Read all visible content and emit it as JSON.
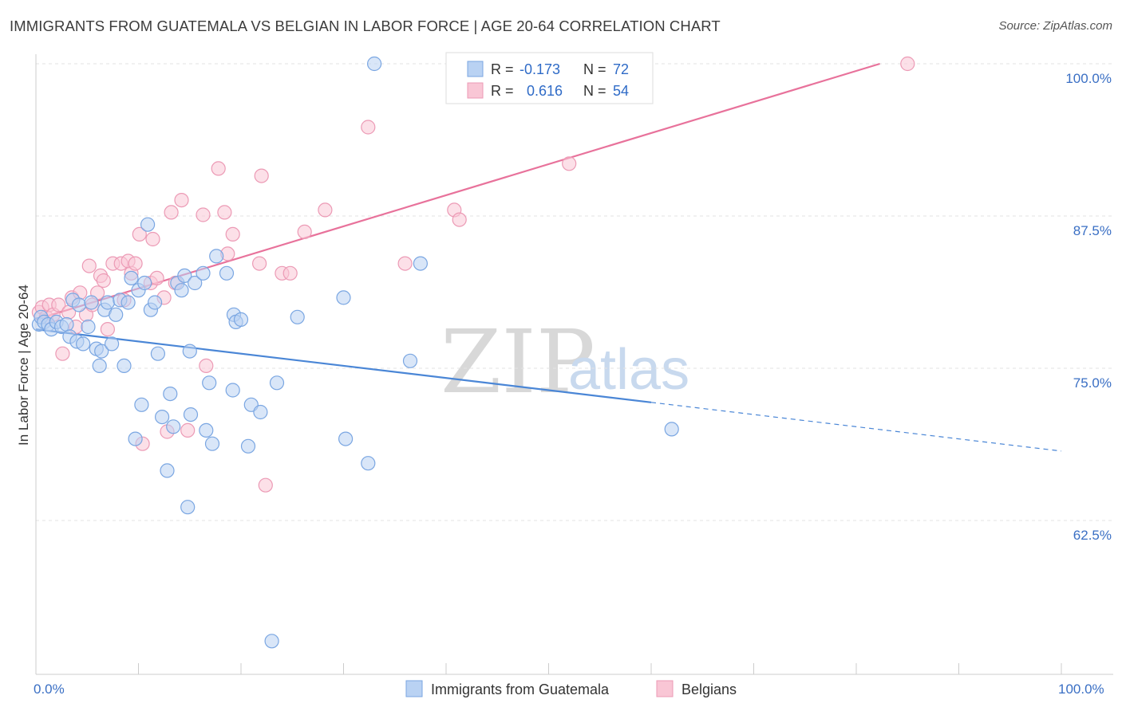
{
  "title": "IMMIGRANTS FROM GUATEMALA VS BELGIAN IN LABOR FORCE | AGE 20-64 CORRELATION CHART",
  "source": "Source: ZipAtlas.com",
  "watermark": {
    "zip": "ZIP",
    "atlas": "atlas"
  },
  "legend": {
    "r_label": "R =",
    "n_label": "N =",
    "rows": [
      {
        "r": "-0.173",
        "n": "72",
        "fill": "#b9d2f3",
        "stroke": "#7aa6e2"
      },
      {
        "r": "0.616",
        "n": "54",
        "fill": "#f9c6d5",
        "stroke": "#ec9ab5"
      }
    ]
  },
  "bottom_legend": [
    "Immigrants from Guatemala",
    "Belgians"
  ],
  "chart_data": {
    "type": "scatter",
    "title": "IMMIGRANTS FROM GUATEMALA VS BELGIAN IN LABOR FORCE | AGE 20-64 CORRELATION CHART",
    "ylabel": "In Labor Force | Age 20-64",
    "xlim": [
      0,
      100
    ],
    "ylim": [
      50,
      100
    ],
    "x_tick_labels": [
      "0.0%",
      "100.0%"
    ],
    "y_ticks": [
      62.5,
      75.0,
      87.5,
      100.0
    ],
    "y_tick_labels": [
      "62.5%",
      "75.0%",
      "87.5%",
      "100.0%"
    ],
    "grid": "horizontal dashed",
    "colors": {
      "guatemala": "#4a86d6",
      "belgians": "#e8729b"
    },
    "series": [
      {
        "name": "Immigrants from Guatemala",
        "color": "#4a86d6",
        "points": [
          [
            0.3,
            78.6
          ],
          [
            0.5,
            79.2
          ],
          [
            0.8,
            78.8
          ],
          [
            1.2,
            78.6
          ],
          [
            1.5,
            78.2
          ],
          [
            2.0,
            78.8
          ],
          [
            2.5,
            78.4
          ],
          [
            3.0,
            78.6
          ],
          [
            3.3,
            77.6
          ],
          [
            3.6,
            80.6
          ],
          [
            4.0,
            77.2
          ],
          [
            4.2,
            80.2
          ],
          [
            4.6,
            77.0
          ],
          [
            5.1,
            78.4
          ],
          [
            5.4,
            80.4
          ],
          [
            5.9,
            76.6
          ],
          [
            6.2,
            75.2
          ],
          [
            6.4,
            76.4
          ],
          [
            6.7,
            79.8
          ],
          [
            7.0,
            80.4
          ],
          [
            7.4,
            77.0
          ],
          [
            7.8,
            79.4
          ],
          [
            8.2,
            80.6
          ],
          [
            8.6,
            75.2
          ],
          [
            9.0,
            80.4
          ],
          [
            9.3,
            82.4
          ],
          [
            9.7,
            69.2
          ],
          [
            10.0,
            81.4
          ],
          [
            10.3,
            72.0
          ],
          [
            10.6,
            82.0
          ],
          [
            10.9,
            86.8
          ],
          [
            11.2,
            79.8
          ],
          [
            11.6,
            80.4
          ],
          [
            11.9,
            76.2
          ],
          [
            12.3,
            71.0
          ],
          [
            12.8,
            66.6
          ],
          [
            13.1,
            72.9
          ],
          [
            13.4,
            70.2
          ],
          [
            13.8,
            82.0
          ],
          [
            14.2,
            81.4
          ],
          [
            14.5,
            82.6
          ],
          [
            14.8,
            63.6
          ],
          [
            15.0,
            76.4
          ],
          [
            15.1,
            71.2
          ],
          [
            15.5,
            82.0
          ],
          [
            16.3,
            82.8
          ],
          [
            16.6,
            69.9
          ],
          [
            16.9,
            73.8
          ],
          [
            17.2,
            68.8
          ],
          [
            17.6,
            84.2
          ],
          [
            18.6,
            82.8
          ],
          [
            19.2,
            73.2
          ],
          [
            19.3,
            79.4
          ],
          [
            19.5,
            78.8
          ],
          [
            20.0,
            79.0
          ],
          [
            20.7,
            68.6
          ],
          [
            21.0,
            72.0
          ],
          [
            21.9,
            71.4
          ],
          [
            23.0,
            52.6
          ],
          [
            23.5,
            73.8
          ],
          [
            25.5,
            79.2
          ],
          [
            30.0,
            80.8
          ],
          [
            30.2,
            69.2
          ],
          [
            32.4,
            67.2
          ],
          [
            33.0,
            100.0
          ],
          [
            36.5,
            75.6
          ],
          [
            37.5,
            83.6
          ],
          [
            62.0,
            70.0
          ]
        ]
      },
      {
        "name": "Belgians",
        "color": "#e8729b",
        "points": [
          [
            0.3,
            79.6
          ],
          [
            0.6,
            80.0
          ],
          [
            1.0,
            79.2
          ],
          [
            1.3,
            80.2
          ],
          [
            1.7,
            79.4
          ],
          [
            2.2,
            80.2
          ],
          [
            2.6,
            76.2
          ],
          [
            3.2,
            79.6
          ],
          [
            3.5,
            80.8
          ],
          [
            3.9,
            78.4
          ],
          [
            4.3,
            81.2
          ],
          [
            4.9,
            79.4
          ],
          [
            5.2,
            83.4
          ],
          [
            5.5,
            80.2
          ],
          [
            6.0,
            81.2
          ],
          [
            6.3,
            82.6
          ],
          [
            6.6,
            82.2
          ],
          [
            7.0,
            78.2
          ],
          [
            7.5,
            83.6
          ],
          [
            8.3,
            83.6
          ],
          [
            8.6,
            80.6
          ],
          [
            9.0,
            83.8
          ],
          [
            9.3,
            82.8
          ],
          [
            9.7,
            83.6
          ],
          [
            10.1,
            86.0
          ],
          [
            10.4,
            68.8
          ],
          [
            11.2,
            82.0
          ],
          [
            11.4,
            85.6
          ],
          [
            11.8,
            82.4
          ],
          [
            12.5,
            80.8
          ],
          [
            12.8,
            69.8
          ],
          [
            13.2,
            87.8
          ],
          [
            13.6,
            82.0
          ],
          [
            14.2,
            88.8
          ],
          [
            14.8,
            69.9
          ],
          [
            16.3,
            87.6
          ],
          [
            16.6,
            75.2
          ],
          [
            17.8,
            91.4
          ],
          [
            18.4,
            87.8
          ],
          [
            18.7,
            84.4
          ],
          [
            19.2,
            86.0
          ],
          [
            21.8,
            83.6
          ],
          [
            22.0,
            90.8
          ],
          [
            22.4,
            65.4
          ],
          [
            24.0,
            82.8
          ],
          [
            24.8,
            82.8
          ],
          [
            26.2,
            86.2
          ],
          [
            28.2,
            88.0
          ],
          [
            32.4,
            94.8
          ],
          [
            36.0,
            83.6
          ],
          [
            40.8,
            88.0
          ],
          [
            41.3,
            87.2
          ],
          [
            52.0,
            91.8
          ],
          [
            85.0,
            100.0
          ]
        ]
      }
    ],
    "trend_lines": [
      {
        "series": "Immigrants from Guatemala",
        "solid": [
          [
            0,
            78.2
          ],
          [
            60,
            72.2
          ]
        ],
        "dashed": [
          [
            60,
            72.2
          ],
          [
            100,
            68.2
          ]
        ]
      },
      {
        "series": "Belgians",
        "solid": [
          [
            0,
            79.0
          ],
          [
            82.3,
            100.0
          ]
        ]
      }
    ]
  }
}
